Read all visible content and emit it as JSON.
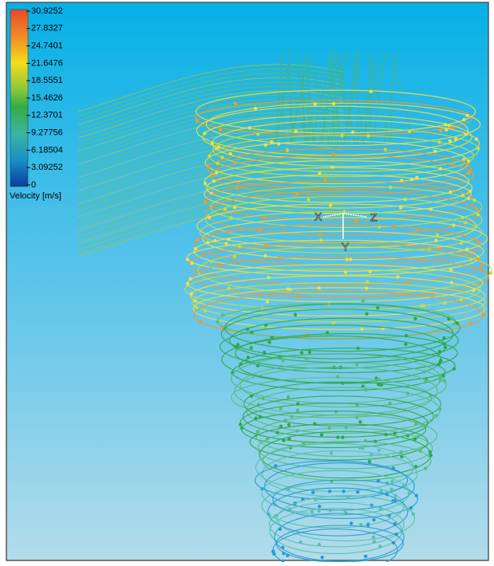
{
  "colorbar": {
    "ticks": [
      "30.9252",
      "27.8327",
      "24.7401",
      "21.6476",
      "18.5551",
      "15.4626",
      "12.3701",
      "9.27756",
      "6.18504",
      "3.09252",
      "0"
    ],
    "title": "Velocity [m/s]"
  },
  "triad": {
    "x": "X",
    "y": "Y",
    "z": "Z"
  }
}
